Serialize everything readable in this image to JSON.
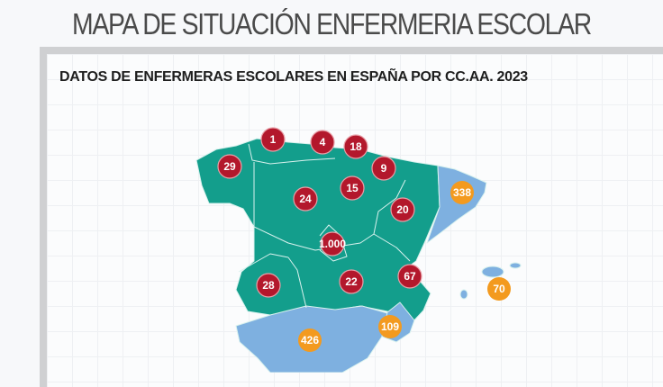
{
  "header": {
    "title": "MAPA DE SITUACIÓN ENFERMERIA ESCOLAR"
  },
  "map": {
    "subtitle": "DATOS DE ENFERMERAS ESCOLARES EN ESPAÑA POR CC.AA. 2023",
    "colors": {
      "region_low": "#139e8c",
      "region_high": "#7eb0e0",
      "marker_low": "#b3182c",
      "marker_high": "#f39a1f"
    },
    "markers": [
      {
        "value": "1",
        "category": "low"
      },
      {
        "value": "4",
        "category": "low"
      },
      {
        "value": "18",
        "category": "low"
      },
      {
        "value": "29",
        "category": "low"
      },
      {
        "value": "9",
        "category": "low"
      },
      {
        "value": "15",
        "category": "low"
      },
      {
        "value": "24",
        "category": "low"
      },
      {
        "value": "20",
        "category": "low"
      },
      {
        "value": "338",
        "category": "high"
      },
      {
        "value": "1.000",
        "category": "low"
      },
      {
        "value": "67",
        "category": "low"
      },
      {
        "value": "70",
        "category": "high"
      },
      {
        "value": "28",
        "category": "low"
      },
      {
        "value": "22",
        "category": "low"
      },
      {
        "value": "109",
        "category": "high"
      },
      {
        "value": "426",
        "category": "high"
      }
    ]
  }
}
